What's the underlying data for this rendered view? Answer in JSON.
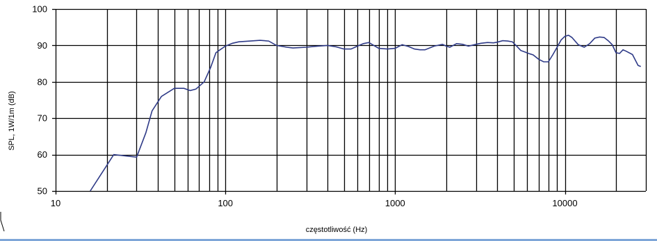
{
  "chart_data": {
    "type": "line",
    "title": "",
    "xlabel": "częstotliwość (Hz)",
    "ylabel": "SPL, 1W/1m (dB)",
    "x_scale": "log",
    "xlim": [
      10,
      30000
    ],
    "ylim": [
      50,
      100
    ],
    "x_tick_labels": [
      "10",
      "100",
      "1000",
      "10000"
    ],
    "x_tick_values": [
      10,
      100,
      1000,
      10000
    ],
    "y_tick_labels": [
      "50",
      "60",
      "70",
      "80",
      "90",
      "100"
    ],
    "y_tick_values": [
      50,
      60,
      70,
      80,
      90,
      100
    ],
    "grid": "on",
    "line_color": "#2e3a87",
    "series": [
      {
        "x": [
          16,
          20,
          22,
          30,
          34,
          37,
          42,
          50,
          57,
          62,
          67,
          75,
          82,
          88,
          93,
          100,
          110,
          120,
          140,
          160,
          180,
          200,
          230,
          250,
          300,
          350,
          400,
          450,
          500,
          550,
          600,
          650,
          700,
          800,
          900,
          1000,
          1100,
          1200,
          1300,
          1400,
          1500,
          1700,
          1900,
          2000,
          2100,
          2300,
          2500,
          2700,
          3000,
          3200,
          3500,
          3800,
          4000,
          4300,
          4600,
          4900,
          5200,
          5500,
          5800,
          6100,
          6500,
          7000,
          7500,
          8000,
          8500,
          9000,
          9500,
          10000,
          10500,
          11000,
          12000,
          13000,
          14000,
          15000,
          16000,
          17000,
          18000,
          19000,
          20000,
          21000,
          22000,
          23000,
          25000,
          27000,
          28000
        ],
        "y": [
          50,
          57,
          60,
          59.3,
          66,
          72,
          76,
          78.2,
          78.2,
          77.6,
          78,
          80,
          84,
          88,
          88.8,
          89.8,
          90.6,
          91,
          91.2,
          91.4,
          91.2,
          90,
          89.5,
          89.3,
          89.5,
          89.8,
          90,
          89.6,
          89,
          89,
          89.8,
          90.5,
          90.8,
          89.2,
          89,
          89.2,
          90.2,
          89.7,
          89,
          88.8,
          88.8,
          89.8,
          90.3,
          89.8,
          89.5,
          90.5,
          90.3,
          89.8,
          90.3,
          90.6,
          90.8,
          90.7,
          90.9,
          91.3,
          91.2,
          91,
          89.8,
          88.6,
          88.2,
          87.8,
          87.4,
          86.2,
          85.5,
          85.5,
          87.5,
          89.5,
          91.5,
          92.5,
          92.8,
          92.2,
          90.2,
          89.5,
          90.5,
          92,
          92.3,
          92.2,
          91.3,
          90.2,
          88,
          87.8,
          88.8,
          88.4,
          87.5,
          84.5,
          84.2
        ]
      }
    ]
  }
}
